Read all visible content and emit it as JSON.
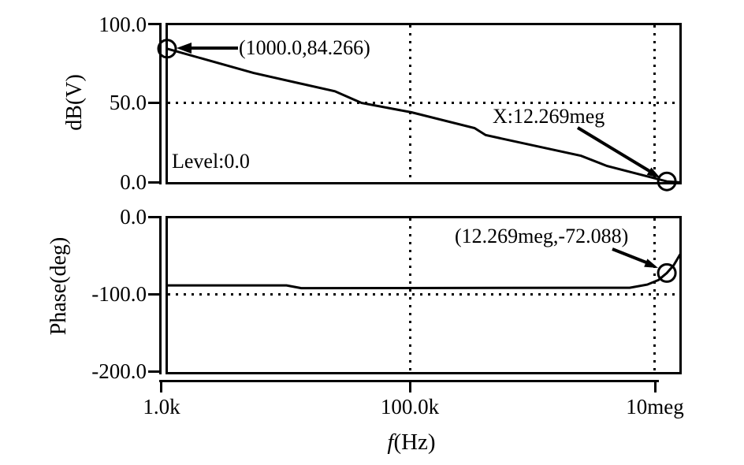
{
  "page": {
    "background": "#ffffff",
    "ink": "#000000"
  },
  "chart_data": [
    {
      "type": "line",
      "name": "gain",
      "title": "",
      "ylabel": "dB(V)",
      "xlabel": "",
      "xscale": "log",
      "xlim": [
        1000,
        15800000
      ],
      "ylim": [
        0,
        100
      ],
      "grid": {
        "horizontal_at": [
          50
        ],
        "vertical_at_hz": [
          100000,
          10000000
        ],
        "style": "dotted"
      },
      "yticks": [
        {
          "value": 100,
          "label": "100.0"
        },
        {
          "value": 50,
          "label": "50.0"
        },
        {
          "value": 0,
          "label": "0.0"
        }
      ],
      "level_label": "Level:0.0",
      "series": [
        {
          "name": "dB(V)",
          "points": [
            [
              1000,
              84.266
            ],
            [
              5100,
              69.0
            ],
            [
              23600,
              57.5
            ],
            [
              39000,
              50.2
            ],
            [
              100000,
              44.3
            ],
            [
              328000,
              34.4
            ],
            [
              404000,
              30.0
            ],
            [
              2440000,
              17.0
            ],
            [
              3980000,
              10.6
            ],
            [
              12269000,
              0.9
            ],
            [
              15800000,
              0.3
            ]
          ]
        }
      ],
      "markers": [
        {
          "x_hz": 1000,
          "y": 84.266,
          "label": "(1000.0,84.266)"
        },
        {
          "x_hz": 12269000,
          "y": 0.9,
          "label": "X:12.269meg"
        }
      ]
    },
    {
      "type": "line",
      "name": "phase",
      "title": "",
      "ylabel": "Phase(deg)",
      "xlabel": "",
      "xscale": "log",
      "xlim": [
        1000,
        15800000
      ],
      "ylim": [
        -200,
        0
      ],
      "grid": {
        "horizontal_at": [
          -100
        ],
        "vertical_at_hz": [
          100000,
          10000000
        ],
        "style": "dotted"
      },
      "yticks": [
        {
          "value": 0,
          "label": "0.0"
        },
        {
          "value": -100,
          "label": "-100.0"
        },
        {
          "value": -200,
          "label": "-200.0"
        }
      ],
      "series": [
        {
          "name": "Phase(deg)",
          "points": [
            [
              1000,
              -88.0
            ],
            [
              9500,
              -88.0
            ],
            [
              12500,
              -91.5
            ],
            [
              6100000,
              -91.0
            ],
            [
              8500000,
              -87.0
            ],
            [
              10500000,
              -81.0
            ],
            [
              12269000,
              -72.088
            ],
            [
              14000000,
              -62.0
            ],
            [
              15800000,
              -48.0
            ]
          ]
        }
      ],
      "markers": [
        {
          "x_hz": 12269000,
          "y": -72.088,
          "label": "(12.269meg,-72.088)"
        }
      ]
    }
  ],
  "xaxis": {
    "label_italic": "f",
    "label_rest": "(Hz)",
    "ticks": [
      {
        "f": 1000,
        "label": "1.0k"
      },
      {
        "f": 100000,
        "label": "100.0k"
      },
      {
        "f": 10000000,
        "label": "10meg"
      }
    ]
  }
}
